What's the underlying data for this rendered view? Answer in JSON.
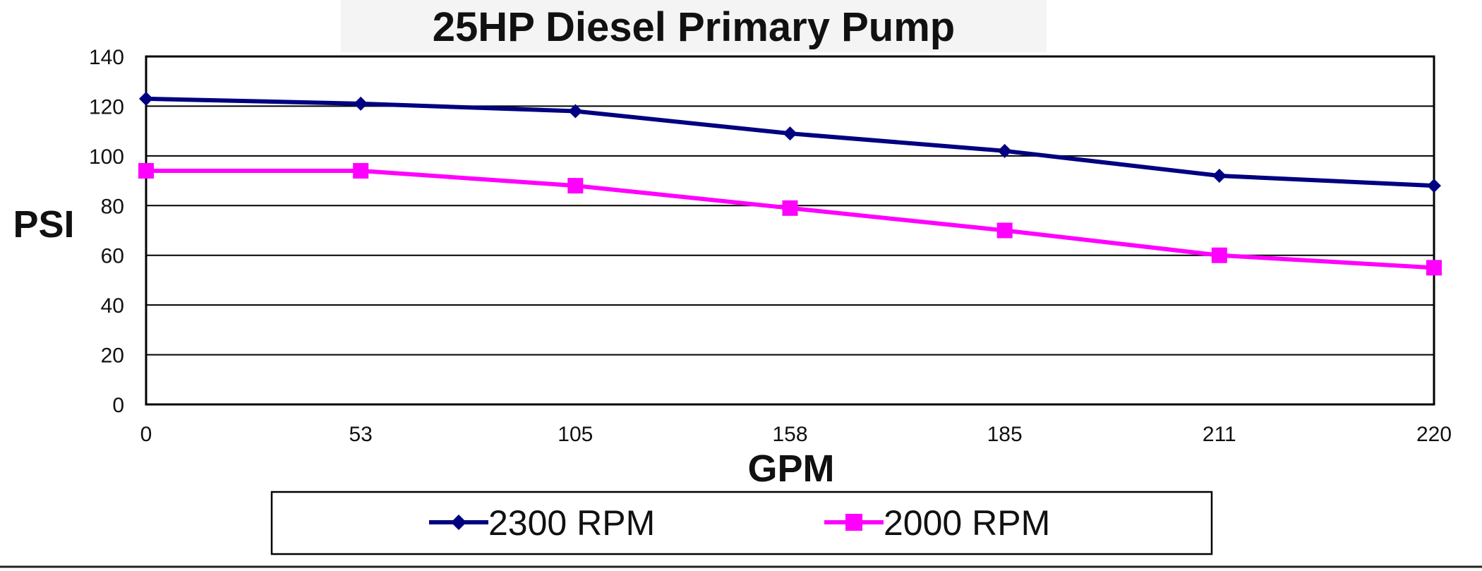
{
  "chart_data": {
    "type": "line",
    "title": "25HP Diesel Primary Pump",
    "xlabel": "GPM",
    "ylabel": "PSI",
    "categories": [
      "0",
      "53",
      "105",
      "158",
      "185",
      "211",
      "220"
    ],
    "ylim": [
      0,
      140
    ],
    "yticks": [
      "0",
      "20",
      "40",
      "60",
      "80",
      "100",
      "120",
      "140"
    ],
    "grid": true,
    "legend": "bottom",
    "series": [
      {
        "name": "2300 RPM",
        "values": [
          123,
          121,
          118,
          109,
          102,
          92,
          88
        ],
        "color": "#000080",
        "marker": "diamond"
      },
      {
        "name": "2000 RPM",
        "values": [
          94,
          94,
          88,
          79,
          70,
          60,
          55
        ],
        "color": "#FF00FF",
        "marker": "square"
      }
    ]
  }
}
